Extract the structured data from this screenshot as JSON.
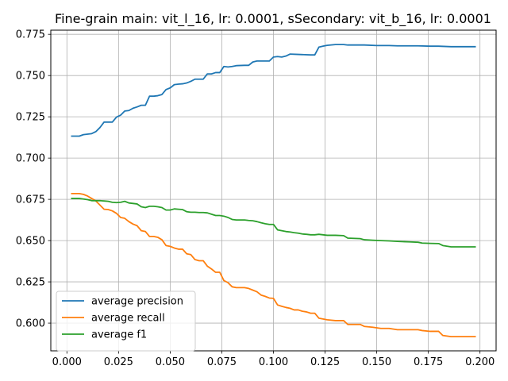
{
  "chart_data": {
    "type": "line",
    "title": "Fine-grain main: vit_l_16, lr: 0.0001, sSecondary: vit_b_16, lr: 0.0001",
    "xlabel": "",
    "ylabel": "",
    "xlim": [
      -0.0078,
      0.2078
    ],
    "ylim": [
      0.5832,
      0.7775
    ],
    "grid": true,
    "legend_position": "lower-left",
    "x_ticks": [
      0.0,
      0.025,
      0.05,
      0.075,
      0.1,
      0.125,
      0.15,
      0.175,
      0.2
    ],
    "x_tick_labels": [
      "0.000",
      "0.025",
      "0.050",
      "0.075",
      "0.100",
      "0.125",
      "0.150",
      "0.175",
      "0.200"
    ],
    "y_ticks": [
      0.6,
      0.625,
      0.65,
      0.675,
      0.7,
      0.725,
      0.75,
      0.775
    ],
    "y_tick_labels": [
      "0.600",
      "0.625",
      "0.650",
      "0.675",
      "0.700",
      "0.725",
      "0.750",
      "0.775"
    ],
    "series": [
      {
        "name": "average precision",
        "color": "#1f77b4",
        "x": [
          0.002,
          0.006,
          0.008,
          0.01,
          0.012,
          0.014,
          0.016,
          0.018,
          0.02,
          0.022,
          0.024,
          0.026,
          0.028,
          0.03,
          0.032,
          0.034,
          0.036,
          0.038,
          0.04,
          0.042,
          0.044,
          0.046,
          0.048,
          0.05,
          0.052,
          0.054,
          0.056,
          0.058,
          0.06,
          0.062,
          0.064,
          0.066,
          0.068,
          0.07,
          0.072,
          0.074,
          0.076,
          0.078,
          0.08,
          0.082,
          0.086,
          0.088,
          0.09,
          0.092,
          0.094,
          0.096,
          0.098,
          0.1,
          0.102,
          0.104,
          0.106,
          0.108,
          0.112,
          0.118,
          0.12,
          0.122,
          0.124,
          0.126,
          0.13,
          0.134,
          0.136,
          0.144,
          0.15,
          0.156,
          0.16,
          0.17,
          0.176,
          0.18,
          0.186,
          0.198
        ],
        "y": [
          0.7133,
          0.7133,
          0.7142,
          0.7145,
          0.7148,
          0.716,
          0.7185,
          0.7218,
          0.7218,
          0.7218,
          0.7248,
          0.726,
          0.7285,
          0.7288,
          0.7302,
          0.731,
          0.732,
          0.732,
          0.7375,
          0.7375,
          0.7378,
          0.7385,
          0.7415,
          0.7425,
          0.7445,
          0.7448,
          0.745,
          0.7455,
          0.7465,
          0.7478,
          0.7478,
          0.7478,
          0.751,
          0.751,
          0.7518,
          0.7518,
          0.7555,
          0.7552,
          0.7555,
          0.756,
          0.7562,
          0.7562,
          0.7582,
          0.7588,
          0.7588,
          0.7588,
          0.7588,
          0.7612,
          0.7615,
          0.7612,
          0.7618,
          0.763,
          0.7628,
          0.7625,
          0.7625,
          0.7672,
          0.7678,
          0.7683,
          0.7688,
          0.7688,
          0.7685,
          0.7685,
          0.7682,
          0.7682,
          0.768,
          0.768,
          0.7678,
          0.7678,
          0.7675,
          0.7675
        ]
      },
      {
        "name": "average recall",
        "color": "#ff7f0e",
        "x": [
          0.002,
          0.006,
          0.008,
          0.01,
          0.012,
          0.014,
          0.016,
          0.018,
          0.02,
          0.022,
          0.024,
          0.026,
          0.028,
          0.03,
          0.032,
          0.034,
          0.036,
          0.038,
          0.04,
          0.042,
          0.044,
          0.046,
          0.048,
          0.05,
          0.052,
          0.054,
          0.056,
          0.058,
          0.06,
          0.062,
          0.064,
          0.066,
          0.068,
          0.07,
          0.072,
          0.074,
          0.076,
          0.078,
          0.08,
          0.082,
          0.086,
          0.088,
          0.09,
          0.092,
          0.094,
          0.096,
          0.098,
          0.1,
          0.102,
          0.104,
          0.106,
          0.108,
          0.11,
          0.112,
          0.114,
          0.116,
          0.118,
          0.12,
          0.122,
          0.124,
          0.126,
          0.13,
          0.134,
          0.136,
          0.142,
          0.144,
          0.148,
          0.152,
          0.156,
          0.16,
          0.166,
          0.17,
          0.172,
          0.176,
          0.18,
          0.182,
          0.186,
          0.198
        ],
        "y": [
          0.6785,
          0.6785,
          0.678,
          0.677,
          0.6755,
          0.674,
          0.6715,
          0.669,
          0.6688,
          0.668,
          0.6665,
          0.664,
          0.6635,
          0.6615,
          0.66,
          0.659,
          0.656,
          0.6555,
          0.6525,
          0.6525,
          0.652,
          0.6505,
          0.647,
          0.6465,
          0.6455,
          0.6448,
          0.6448,
          0.642,
          0.6415,
          0.6385,
          0.6378,
          0.6378,
          0.6345,
          0.6328,
          0.6308,
          0.6308,
          0.6258,
          0.6245,
          0.622,
          0.6215,
          0.6215,
          0.621,
          0.62,
          0.619,
          0.617,
          0.6162,
          0.6152,
          0.615,
          0.611,
          0.6102,
          0.6095,
          0.609,
          0.608,
          0.608,
          0.6072,
          0.6068,
          0.606,
          0.606,
          0.603,
          0.6025,
          0.602,
          0.6015,
          0.6015,
          0.5992,
          0.5992,
          0.598,
          0.5975,
          0.5968,
          0.5968,
          0.596,
          0.596,
          0.596,
          0.5955,
          0.595,
          0.595,
          0.5925,
          0.5918,
          0.5918
        ]
      },
      {
        "name": "average f1",
        "color": "#2ca02c",
        "x": [
          0.002,
          0.006,
          0.008,
          0.01,
          0.012,
          0.014,
          0.016,
          0.018,
          0.02,
          0.022,
          0.024,
          0.026,
          0.028,
          0.03,
          0.032,
          0.034,
          0.036,
          0.038,
          0.04,
          0.042,
          0.044,
          0.046,
          0.048,
          0.05,
          0.052,
          0.054,
          0.056,
          0.058,
          0.06,
          0.062,
          0.064,
          0.066,
          0.068,
          0.07,
          0.072,
          0.074,
          0.076,
          0.078,
          0.08,
          0.082,
          0.086,
          0.088,
          0.09,
          0.092,
          0.094,
          0.096,
          0.098,
          0.1,
          0.102,
          0.104,
          0.106,
          0.108,
          0.11,
          0.112,
          0.114,
          0.116,
          0.118,
          0.12,
          0.122,
          0.124,
          0.126,
          0.13,
          0.134,
          0.136,
          0.142,
          0.144,
          0.148,
          0.152,
          0.156,
          0.16,
          0.166,
          0.17,
          0.172,
          0.176,
          0.18,
          0.182,
          0.186,
          0.198
        ],
        "y": [
          0.6755,
          0.6755,
          0.6752,
          0.6748,
          0.6742,
          0.6742,
          0.6742,
          0.674,
          0.6738,
          0.6732,
          0.673,
          0.6732,
          0.6738,
          0.6728,
          0.6725,
          0.6722,
          0.6705,
          0.67,
          0.6708,
          0.6708,
          0.6705,
          0.67,
          0.6685,
          0.6685,
          0.6692,
          0.669,
          0.6688,
          0.6675,
          0.6672,
          0.6672,
          0.667,
          0.667,
          0.6668,
          0.666,
          0.6652,
          0.6652,
          0.6648,
          0.664,
          0.6628,
          0.6625,
          0.6625,
          0.6622,
          0.662,
          0.6615,
          0.6608,
          0.6602,
          0.6598,
          0.6598,
          0.6565,
          0.656,
          0.6555,
          0.6552,
          0.6548,
          0.6545,
          0.654,
          0.6538,
          0.6535,
          0.6535,
          0.6538,
          0.6535,
          0.6532,
          0.6532,
          0.653,
          0.6515,
          0.6512,
          0.6505,
          0.6502,
          0.65,
          0.6498,
          0.6495,
          0.6492,
          0.649,
          0.6485,
          0.6483,
          0.6482,
          0.647,
          0.6462,
          0.6462
        ]
      }
    ]
  }
}
